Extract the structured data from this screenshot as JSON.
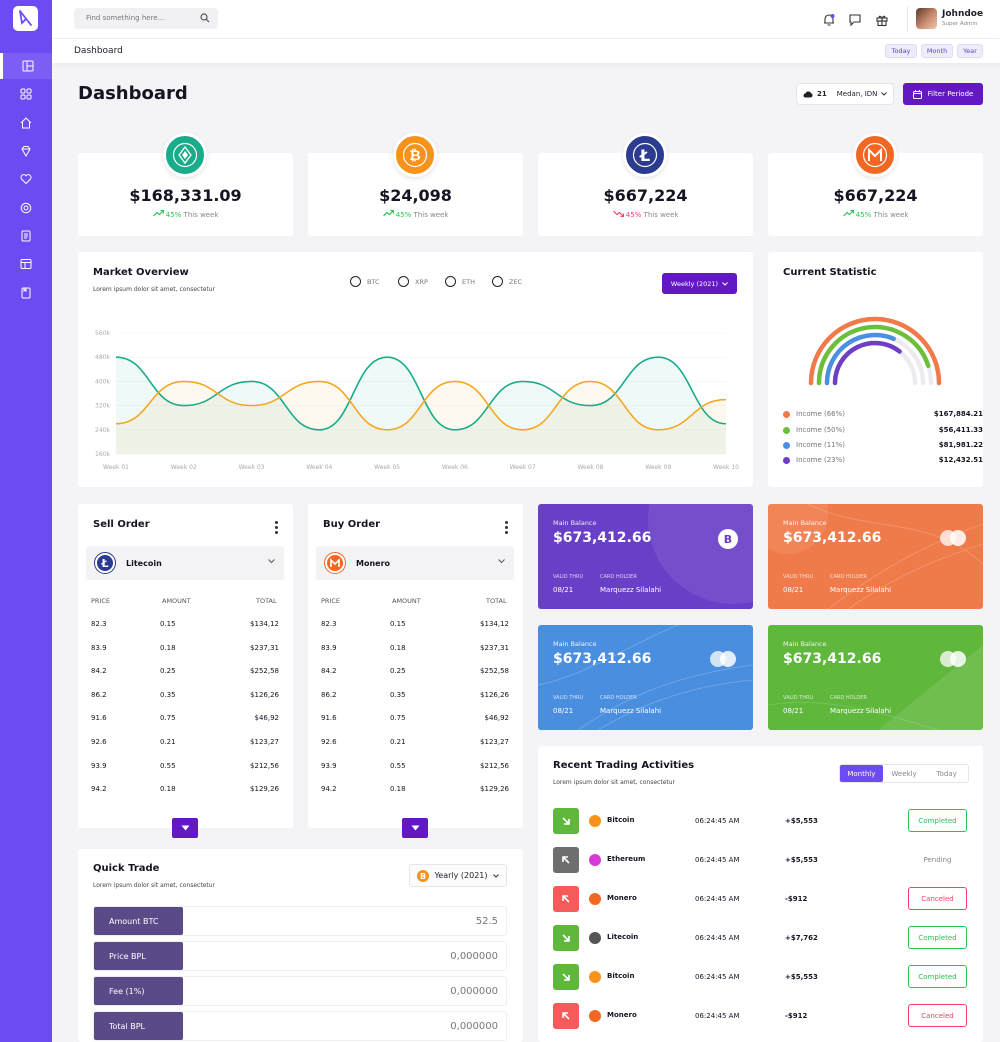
{
  "app": {
    "title": "Dashboard"
  },
  "search": {
    "placeholder": "Find something here..."
  },
  "user": {
    "name": "Johndoe",
    "role": "Super Admin"
  },
  "subbar": {
    "breadcrumb": "Dashboard",
    "periods": [
      "Today",
      "Month",
      "Year"
    ]
  },
  "page_title": "Dashboard",
  "weather": {
    "temp": "21",
    "location": "Medan, IDN"
  },
  "filter_button": "Filter Periode",
  "coins": [
    {
      "icon": "tether-icon",
      "color": "#1aab8b",
      "value": "$168,331.09",
      "pct": "45%",
      "trend": "up",
      "label": "This week"
    },
    {
      "icon": "bitcoin-icon",
      "color": "#f7931a",
      "value": "$24,098",
      "pct": "45%",
      "trend": "up",
      "label": "This week"
    },
    {
      "icon": "litecoin-icon",
      "color": "#2b3b8f",
      "value": "$667,224",
      "pct": "45%",
      "trend": "down",
      "label": "This week"
    },
    {
      "icon": "monero-icon",
      "color": "#f26822",
      "value": "$667,224",
      "pct": "45%",
      "trend": "up",
      "label": "This week"
    }
  ],
  "market": {
    "title": "Market Overview",
    "subtitle": "Lorem ipsum dolor sit amet, consectetur",
    "legend": [
      "BTC",
      "XRP",
      "ETH",
      "ZEC"
    ],
    "dropdown": "Weekly (2021)"
  },
  "chart_data": {
    "type": "area",
    "x": [
      "Week 01",
      "Week 02",
      "Week 03",
      "Week 04",
      "Week 05",
      "Week 06",
      "Week 07",
      "Week 08",
      "Week 09",
      "Week 10"
    ],
    "yticks": [
      "560k",
      "480k",
      "400k",
      "320k",
      "240k",
      "160k"
    ],
    "ylim": [
      160,
      560
    ],
    "series": [
      {
        "color": "#1aab8b",
        "values": [
          480,
          320,
          400,
          240,
          480,
          240,
          400,
          320,
          480,
          260
        ]
      },
      {
        "color": "#f5a623",
        "values": [
          260,
          400,
          320,
          400,
          240,
          400,
          240,
          400,
          240,
          340
        ]
      }
    ]
  },
  "current_statistic": {
    "title": "Current Statistic",
    "items": [
      {
        "label": "Income (66%)",
        "amount": "$167,884.21",
        "color": "#f07a4a",
        "pct": 0.66
      },
      {
        "label": "Income (50%)",
        "amount": "$56,411.33",
        "color": "#6bbf3b",
        "pct": 0.5
      },
      {
        "label": "Income (11%)",
        "amount": "$81,981.22",
        "color": "#4a8fe0",
        "pct": 0.11
      },
      {
        "label": "Income (23%)",
        "amount": "$12,432.51",
        "color": "#6c3fc6",
        "pct": 0.23
      }
    ]
  },
  "sell_order": {
    "title": "Sell Order",
    "coin": "Litecoin",
    "headers": [
      "PRICE",
      "AMOUNT",
      "TOTAL"
    ],
    "rows": [
      [
        "82.3",
        "0.15",
        "$134,12"
      ],
      [
        "83.9",
        "0.18",
        "$237,31"
      ],
      [
        "84.2",
        "0.25",
        "$252,58"
      ],
      [
        "86.2",
        "0.35",
        "$126,26"
      ],
      [
        "91.6",
        "0.75",
        "$46,92"
      ],
      [
        "92.6",
        "0.21",
        "$123,27"
      ],
      [
        "93.9",
        "0.55",
        "$212,56"
      ],
      [
        "94.2",
        "0.18",
        "$129,26"
      ]
    ]
  },
  "buy_order": {
    "title": "Buy Order",
    "coin": "Monero",
    "headers": [
      "PRICE",
      "AMOUNT",
      "TOTAL"
    ],
    "rows": [
      [
        "82.3",
        "0.15",
        "$134,12"
      ],
      [
        "83.9",
        "0.18",
        "$237,31"
      ],
      [
        "84.2",
        "0.25",
        "$252,58"
      ],
      [
        "86.2",
        "0.35",
        "$126,26"
      ],
      [
        "91.6",
        "0.75",
        "$46,92"
      ],
      [
        "92.6",
        "0.21",
        "$123,27"
      ],
      [
        "93.9",
        "0.55",
        "$212,56"
      ],
      [
        "94.2",
        "0.18",
        "$129,26"
      ]
    ]
  },
  "balance_cards": [
    {
      "label": "Main Balance",
      "value": "$673,412.66",
      "valid_label": "VALID THRU",
      "valid": "08/21",
      "holder_label": "CARD HOLDER",
      "holder": "Marquezz Silalahi",
      "color": "#6a3fc8",
      "badge": "bitcoin-icon"
    },
    {
      "label": "Main Balance",
      "value": "$673,412.66",
      "valid_label": "VALID THRU",
      "valid": "08/21",
      "holder_label": "CARD HOLDER",
      "holder": "Marquezz Silalahi",
      "color": "#f07b4a",
      "badge": "mastercard-icon"
    },
    {
      "label": "Main Balance",
      "value": "$673,412.66",
      "valid_label": "VALID THRU",
      "valid": "08/21",
      "holder_label": "CARD HOLDER",
      "holder": "Marquezz Silalahi",
      "color": "#4a8ee0",
      "badge": "mastercard-icon"
    },
    {
      "label": "Main Balance",
      "value": "$673,412.66",
      "valid_label": "VALID THRU",
      "valid": "08/21",
      "holder_label": "CARD HOLDER",
      "holder": "Marquezz Silalahi",
      "color": "#5fb73c",
      "badge": "mastercard-icon"
    }
  ],
  "recent": {
    "title": "Recent Trading Activities",
    "subtitle": "Lorem ipsum dolor sit amet, consectetur",
    "tabs": [
      "Monthly",
      "Weekly",
      "Today"
    ],
    "rows": [
      {
        "dir": "down",
        "coin": "Bitcoin",
        "coin_color": "#f7931a",
        "time": "06:24:45 AM",
        "amount": "+$5,553",
        "status": "Completed"
      },
      {
        "dir": "up",
        "coin": "Ethereum",
        "coin_color": "#d63bd8",
        "time": "06:24:45 AM",
        "amount": "+$5,553",
        "status": "Pending"
      },
      {
        "dir": "up",
        "coin": "Monero",
        "coin_color": "#f26822",
        "time": "06:24:45 AM",
        "amount": "-$912",
        "status": "Canceled"
      },
      {
        "dir": "down",
        "coin": "Litecoin",
        "coin_color": "#555555",
        "time": "06:24:45 AM",
        "amount": "+$7,762",
        "status": "Completed"
      },
      {
        "dir": "down",
        "coin": "Bitcoin",
        "coin_color": "#f7931a",
        "time": "06:24:45 AM",
        "amount": "+$5,553",
        "status": "Completed"
      },
      {
        "dir": "up",
        "coin": "Monero",
        "coin_color": "#f26822",
        "time": "06:24:45 AM",
        "amount": "-$912",
        "status": "Canceled"
      }
    ]
  },
  "quick_trade": {
    "title": "Quick Trade",
    "subtitle": "Lorem ipsum dolor sit amet, consectetur",
    "period": "Yearly (2021)",
    "rows": [
      {
        "label": "Amount BTC",
        "value": "52.5"
      },
      {
        "label": "Price BPL",
        "value": "0,000000"
      },
      {
        "label": "Fee (1%)",
        "value": "0,000000"
      },
      {
        "label": "Total BPL",
        "value": "0,000000"
      }
    ]
  },
  "colors": {
    "brand": "#6c4bf2",
    "accent": "#6418c3",
    "positive": "#2bc155",
    "negative": "#f94067"
  }
}
